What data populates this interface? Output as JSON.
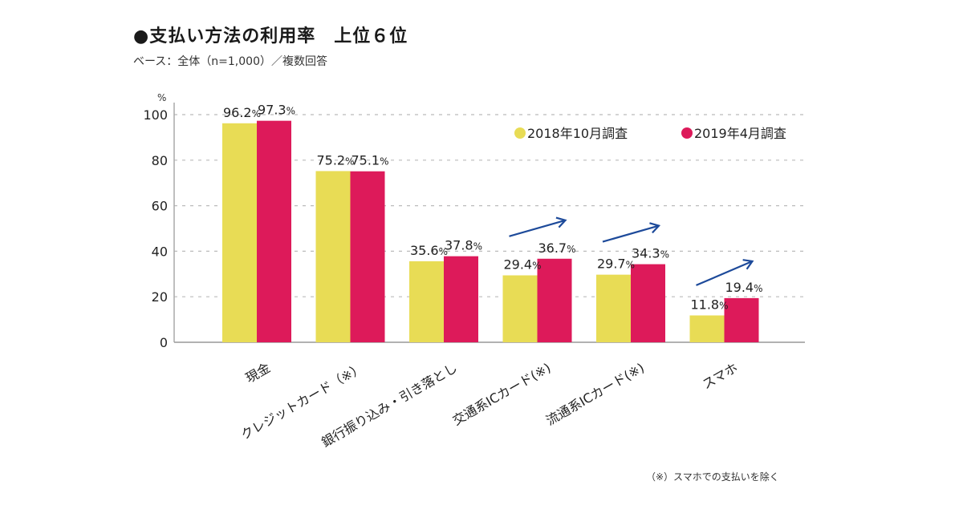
{
  "header": {
    "title": "●支払い方法の利用率　上位６位",
    "subtitle": "ベース：全体（n=1,000）／複数回答"
  },
  "footnote": "（※）スマホでの支払いを除く",
  "chart_data": {
    "type": "bar",
    "title": "支払い方法の利用率　上位６位",
    "subtitle": "ベース：全体（n=1,000）／複数回答",
    "ylabel": "%",
    "xlabel": "",
    "ylim": [
      0,
      100
    ],
    "yticks": [
      0,
      20,
      40,
      60,
      80,
      100
    ],
    "grid": true,
    "legend_position": "top-right",
    "categories": [
      "現金",
      "クレジットカード（※）",
      "銀行振り込み・引き落とし",
      "交通系ICカード(※)",
      "流通系ICカード(※)",
      "スマホ"
    ],
    "series": [
      {
        "name": "2018年10月調査",
        "color": "#e8dc55",
        "values": [
          96.2,
          75.2,
          35.6,
          29.4,
          29.7,
          11.8
        ]
      },
      {
        "name": "2019年4月調査",
        "color": "#dd1a5a",
        "values": [
          97.3,
          75.1,
          37.8,
          36.7,
          34.3,
          19.4
        ]
      }
    ],
    "value_suffix": "%",
    "annotations": [
      {
        "type": "up-arrow",
        "category": "交通系ICカード(※)",
        "color": "#1d4a9a"
      },
      {
        "type": "up-arrow",
        "category": "流通系ICカード(※)",
        "color": "#1d4a9a"
      },
      {
        "type": "up-arrow",
        "category": "スマホ",
        "color": "#1d4a9a"
      }
    ]
  }
}
